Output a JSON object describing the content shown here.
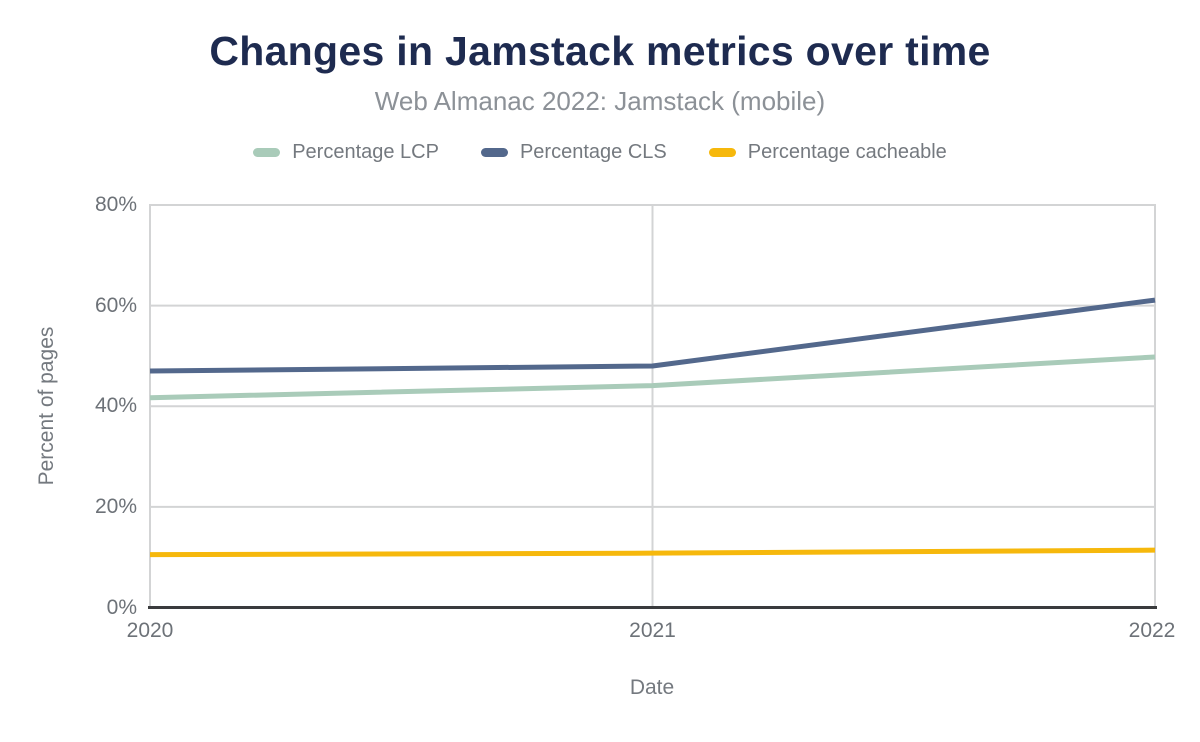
{
  "chart_data": {
    "type": "line",
    "title": "Changes in Jamstack metrics over time",
    "subtitle": "Web Almanac 2022: Jamstack (mobile)",
    "xlabel": "Date",
    "ylabel": "Percent of pages",
    "categories": [
      "2020",
      "2021",
      "2022"
    ],
    "series": [
      {
        "name": "Percentage LCP",
        "color": "#a9cbb9",
        "values": [
          41.7,
          44.1,
          49.8
        ]
      },
      {
        "name": "Percentage CLS",
        "color": "#53688c",
        "values": [
          47.0,
          48.0,
          61.1
        ]
      },
      {
        "name": "Percentage cacheable",
        "color": "#f6b80c",
        "values": [
          10.5,
          10.8,
          11.4
        ]
      }
    ],
    "ylim": [
      0,
      80
    ],
    "ytick_values": [
      0,
      20,
      40,
      60,
      80
    ],
    "ytick_labels": [
      "0%",
      "20%",
      "40%",
      "60%",
      "80%"
    ],
    "grid": true,
    "legend_position": "top",
    "styles": {
      "title_color": "#1e2b50",
      "subtitle_color": "#8c9197",
      "text_color": "#74797f",
      "tick_color": "#6d7278",
      "gridline_color": "#d3d4d5",
      "axis_color": "#3a3b3d",
      "background": "#ffffff"
    }
  }
}
